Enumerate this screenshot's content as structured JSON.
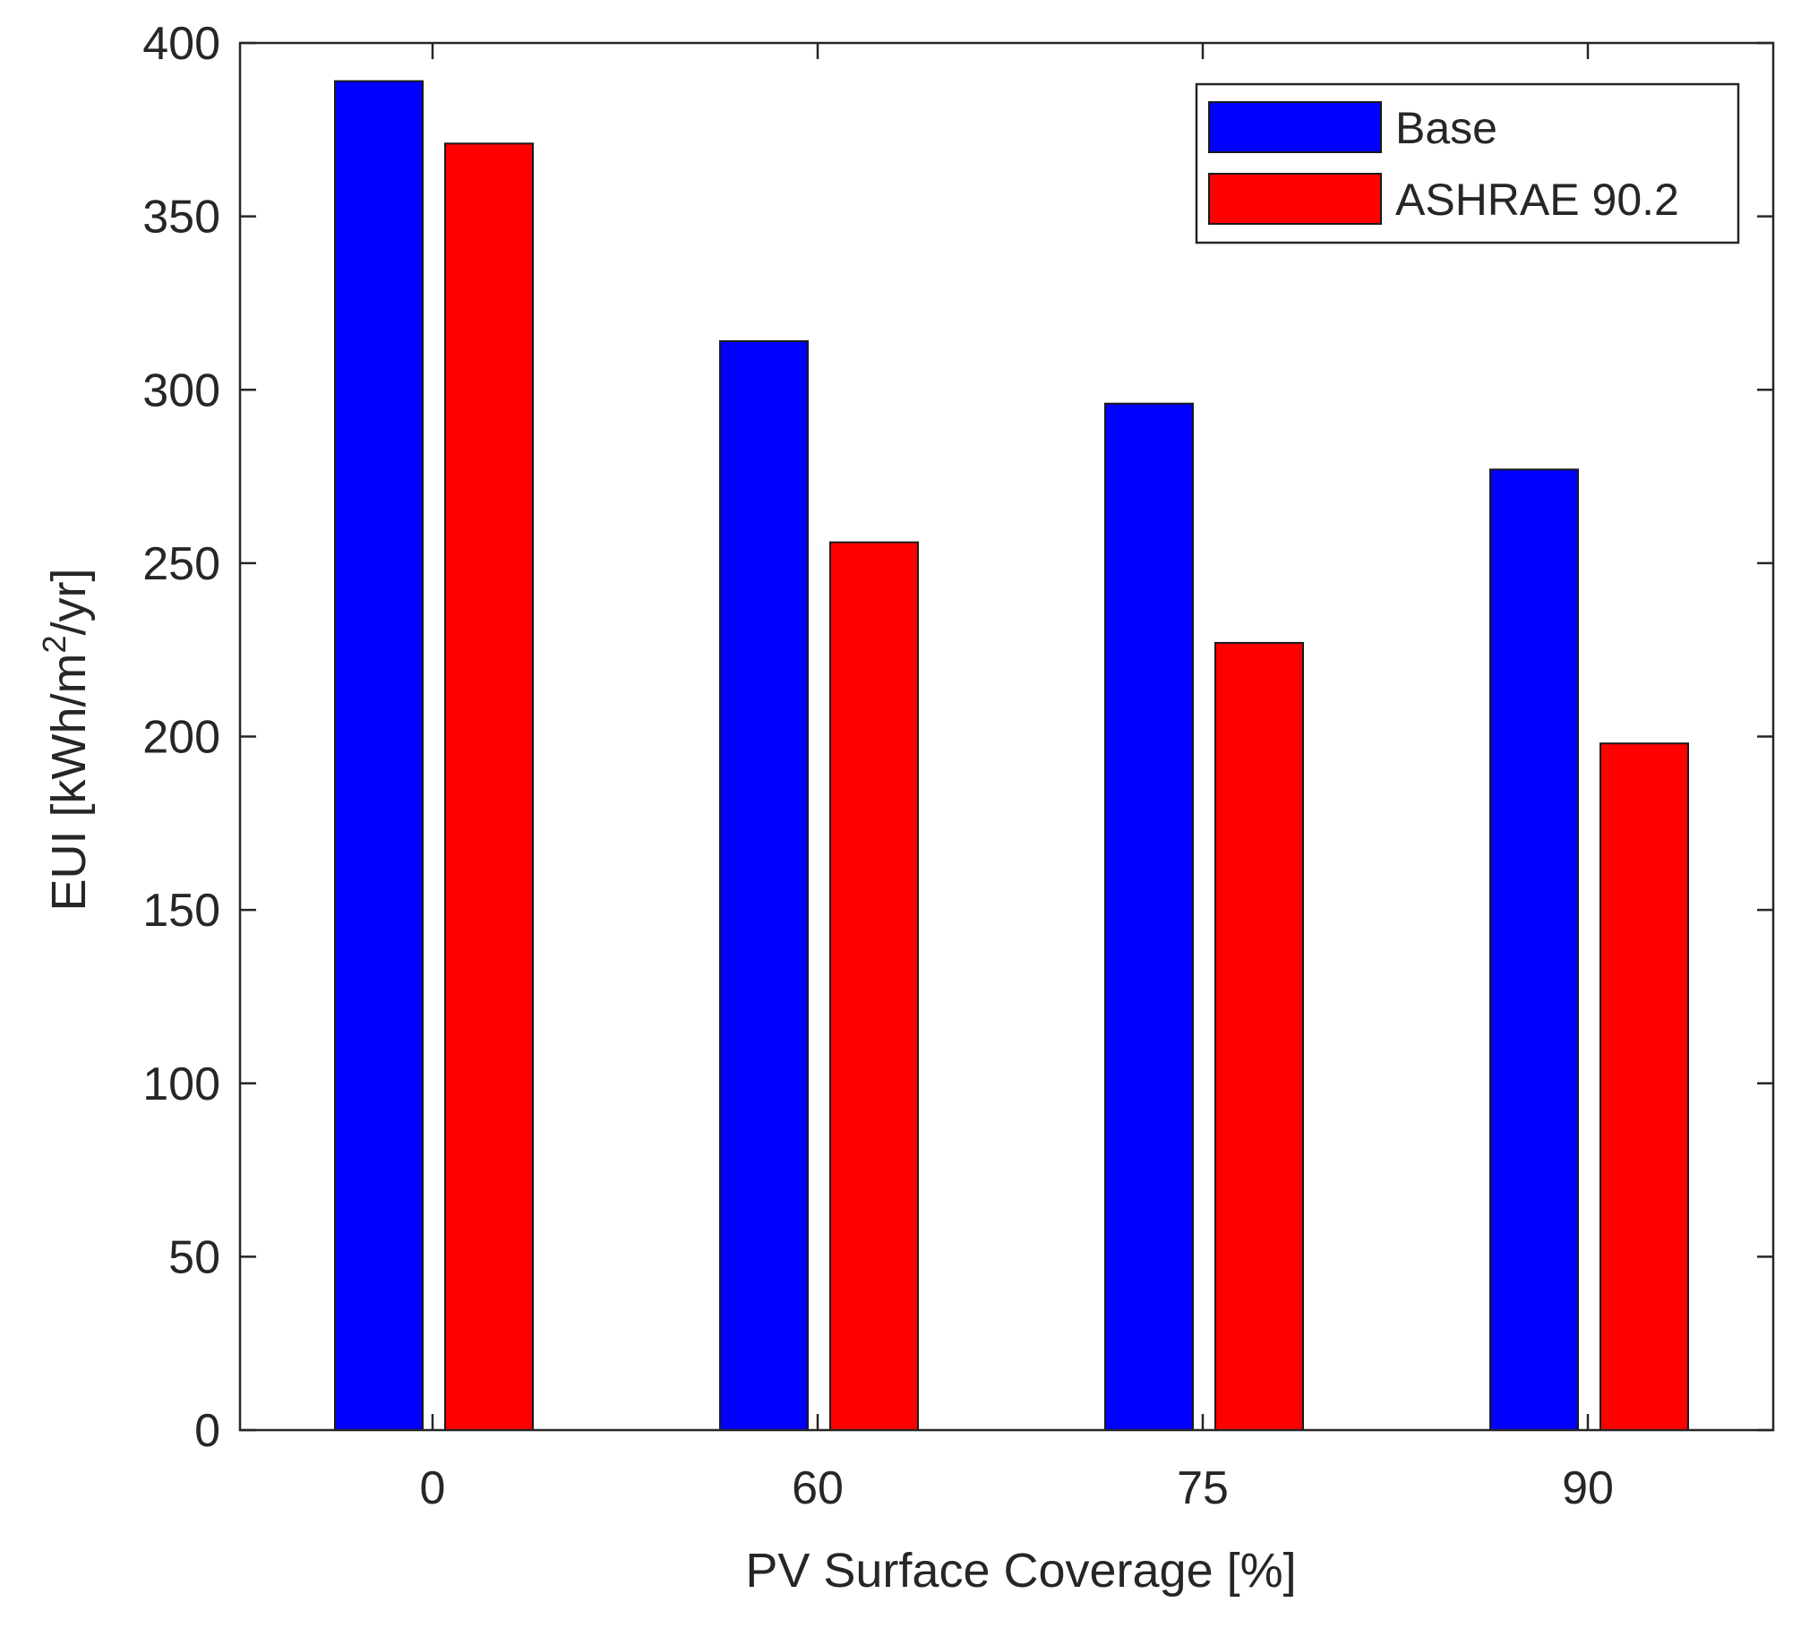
{
  "chart_data": {
    "type": "bar",
    "xlabel": "PV Surface Coverage [%]",
    "ylabel_parts": [
      "EUI [kWh/m",
      "2",
      "/yr]"
    ],
    "categories": [
      "0",
      "60",
      "75",
      "90"
    ],
    "series": [
      {
        "name": "Base",
        "color": "#0000ff",
        "values": [
          389,
          314,
          296,
          277
        ]
      },
      {
        "name": "ASHRAE 90.2",
        "color": "#ff0000",
        "values": [
          371,
          256,
          227,
          198
        ]
      }
    ],
    "ylim": [
      0,
      400
    ],
    "yticks": [
      0,
      50,
      100,
      150,
      200,
      250,
      300,
      350,
      400
    ],
    "yticks_labels": [
      "0",
      "50",
      "100",
      "150",
      "200",
      "250",
      "300",
      "350",
      "400"
    ],
    "grid": false,
    "legend_position": "top-right"
  }
}
